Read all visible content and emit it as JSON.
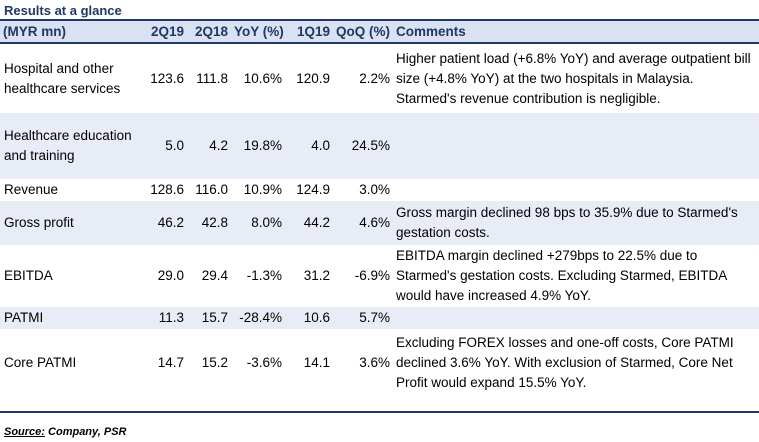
{
  "title": "Results at a glance",
  "headers": [
    "(MYR mn)",
    "2Q19",
    "2Q18",
    "YoY (%)",
    "1Q19",
    "QoQ (%)",
    "Comments"
  ],
  "rows": [
    {
      "label": "Hospital and other healthcare services",
      "q219": "123.6",
      "q218": "111.8",
      "yoy": "10.6%",
      "q119": "120.9",
      "qoq": "2.2%",
      "comment": "Higher patient load (+6.8% YoY) and average outpatient bill size (+4.8% YoY) at the two hospitals in Malaysia. Starmed's revenue contribution is negligible."
    },
    {
      "label": "Healthcare education and training",
      "q219": "5.0",
      "q218": "4.2",
      "yoy": "19.8%",
      "q119": "4.0",
      "qoq": "24.5%",
      "comment": ""
    },
    {
      "label": "Revenue",
      "q219": "128.6",
      "q218": "116.0",
      "yoy": "10.9%",
      "q119": "124.9",
      "qoq": "3.0%",
      "comment": ""
    },
    {
      "label": "Gross profit",
      "q219": "46.2",
      "q218": "42.8",
      "yoy": "8.0%",
      "q119": "44.2",
      "qoq": "4.6%",
      "comment": "Gross margin declined 98 bps to 35.9% due to Starmed's gestation costs."
    },
    {
      "label": "EBITDA",
      "q219": "29.0",
      "q218": "29.4",
      "yoy": "-1.3%",
      "q119": "31.2",
      "qoq": "-6.9%",
      "comment": "EBITDA margin declined +279bps to 22.5% due to Starmed's gestation costs. Excluding Starmed, EBITDA would have increased 4.9% YoY."
    },
    {
      "label": "PATMI",
      "q219": "11.3",
      "q218": "15.7",
      "yoy": "-28.4%",
      "q119": "10.6",
      "qoq": "5.7%",
      "comment": ""
    },
    {
      "label": "Core PATMI",
      "q219": "14.7",
      "q218": "15.2",
      "yoy": "-3.6%",
      "q119": "14.1",
      "qoq": "3.6%",
      "comment": "Excluding FOREX losses and one-off costs, Core PATMI declined 3.6% YoY. With exclusion of Starmed, Core Net Profit would expand 15.5% YoY."
    }
  ],
  "source_label": "Source:",
  "source_text": "Company, PSR"
}
